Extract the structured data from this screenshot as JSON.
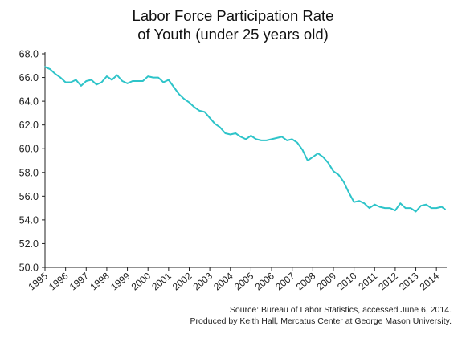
{
  "chart_data": {
    "type": "line",
    "title": [
      "Labor Force Participation Rate",
      "of Youth (under 25 years old)"
    ],
    "xlabel": "",
    "ylabel": "",
    "ylim": [
      50.0,
      68.0
    ],
    "y_ticks": [
      "50.0",
      "52.0",
      "54.0",
      "56.0",
      "58.0",
      "60.0",
      "62.0",
      "64.0",
      "66.0",
      "68.0"
    ],
    "x_ticks": [
      "1995",
      "1996",
      "1997",
      "1998",
      "1999",
      "2000",
      "2001",
      "2002",
      "2003",
      "2004",
      "2005",
      "2006",
      "2007",
      "2008",
      "2009",
      "2010",
      "2011",
      "2012",
      "2013",
      "2014"
    ],
    "grid": false,
    "series": [
      {
        "color": "#2ec4c9",
        "x": [
          1995.0,
          1995.25,
          1995.5,
          1995.75,
          1996.0,
          1996.25,
          1996.5,
          1996.75,
          1997.0,
          1997.25,
          1997.5,
          1997.75,
          1998.0,
          1998.25,
          1998.5,
          1998.75,
          1999.0,
          1999.25,
          1999.5,
          1999.75,
          2000.0,
          2000.25,
          2000.5,
          2000.75,
          2001.0,
          2001.25,
          2001.5,
          2001.75,
          2002.0,
          2002.25,
          2002.5,
          2002.75,
          2003.0,
          2003.25,
          2003.5,
          2003.75,
          2004.0,
          2004.25,
          2004.5,
          2004.75,
          2005.0,
          2005.25,
          2005.5,
          2005.75,
          2006.0,
          2006.25,
          2006.5,
          2006.75,
          2007.0,
          2007.25,
          2007.5,
          2007.75,
          2008.0,
          2008.25,
          2008.5,
          2008.75,
          2009.0,
          2009.25,
          2009.5,
          2009.75,
          2010.0,
          2010.25,
          2010.5,
          2010.75,
          2011.0,
          2011.25,
          2011.5,
          2011.75,
          2012.0,
          2012.25,
          2012.5,
          2012.75,
          2013.0,
          2013.25,
          2013.5,
          2013.75,
          2014.0,
          2014.25,
          2014.42
        ],
        "y": [
          66.9,
          66.7,
          66.3,
          66.0,
          65.6,
          65.6,
          65.8,
          65.3,
          65.7,
          65.8,
          65.4,
          65.6,
          66.1,
          65.8,
          66.2,
          65.7,
          65.5,
          65.7,
          65.7,
          65.7,
          66.1,
          66.0,
          66.0,
          65.6,
          65.8,
          65.2,
          64.6,
          64.2,
          63.9,
          63.5,
          63.2,
          63.1,
          62.6,
          62.1,
          61.8,
          61.3,
          61.2,
          61.3,
          61.0,
          60.8,
          61.1,
          60.8,
          60.7,
          60.7,
          60.8,
          60.9,
          61.0,
          60.7,
          60.8,
          60.5,
          59.9,
          59.0,
          59.3,
          59.6,
          59.3,
          58.8,
          58.1,
          57.8,
          57.2,
          56.3,
          55.5,
          55.6,
          55.4,
          55.0,
          55.3,
          55.1,
          55.0,
          55.0,
          54.8,
          55.4,
          55.0,
          55.0,
          54.7,
          55.2,
          55.3,
          55.0,
          55.0,
          55.1,
          54.9
        ]
      }
    ]
  },
  "source": {
    "line1": "Source: Bureau of Labor Statistics, accessed June 6, 2014.",
    "line2": "Produced by Keith Hall, Mercatus Center at George Mason University."
  }
}
